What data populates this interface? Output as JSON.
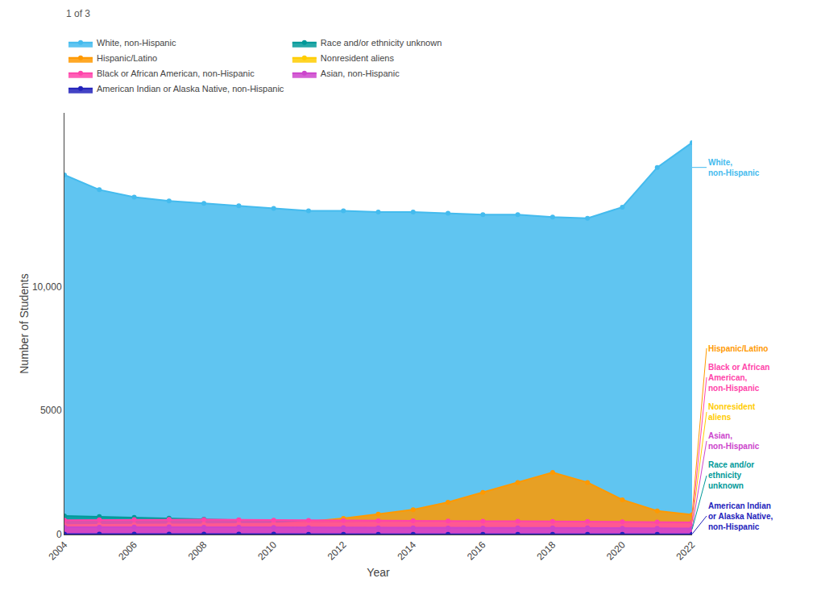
{
  "chart_data": {
    "type": "area",
    "x": [
      2004,
      2005,
      2006,
      2007,
      2008,
      2009,
      2010,
      2011,
      2012,
      2013,
      2014,
      2015,
      2016,
      2017,
      2018,
      2019,
      2020,
      2021,
      2022
    ],
    "series": [
      {
        "name": "White, non-Hispanic",
        "color": "#44bbee",
        "values": [
          14500,
          13900,
          13600,
          13450,
          13350,
          13250,
          13150,
          13050,
          13050,
          13000,
          13000,
          12950,
          12900,
          12900,
          12800,
          12750,
          13200,
          14800,
          15800
        ]
      },
      {
        "name": "Race and/or ethnicity unknown",
        "color": "#009999",
        "values": [
          750,
          720,
          690,
          660,
          620,
          580,
          540,
          500,
          460,
          430,
          400,
          370,
          340,
          310,
          280,
          260,
          240,
          220,
          200
        ]
      },
      {
        "name": "Hispanic/Latino",
        "color": "#ff9900",
        "values": [
          150,
          160,
          200,
          260,
          310,
          360,
          430,
          520,
          650,
          820,
          1000,
          1300,
          1700,
          2100,
          2500,
          2100,
          1400,
          950,
          800
        ]
      },
      {
        "name": "Nonresident aliens",
        "color": "#ffcc00",
        "values": [
          380,
          390,
          400,
          410,
          420,
          430,
          440,
          450,
          460,
          465,
          475,
          480,
          490,
          495,
          500,
          490,
          470,
          450,
          440
        ]
      },
      {
        "name": "Black or African American, non-Hispanic",
        "color": "#ff44aa",
        "values": [
          580,
          590,
          600,
          610,
          600,
          590,
          580,
          570,
          560,
          555,
          550,
          545,
          540,
          535,
          530,
          525,
          510,
          500,
          490
        ]
      },
      {
        "name": "Asian, non-Hispanic",
        "color": "#cc44cc",
        "values": [
          290,
          295,
          300,
          305,
          295,
          290,
          285,
          280,
          275,
          270,
          265,
          260,
          260,
          265,
          270,
          265,
          255,
          250,
          245
        ]
      },
      {
        "name": "American Indian or Alaska Native, non-Hispanic",
        "color": "#2222bb",
        "values": [
          20,
          18,
          17,
          16,
          15,
          14,
          13,
          12,
          11,
          10,
          10,
          9,
          9,
          8,
          8,
          8,
          7,
          7,
          7
        ]
      }
    ],
    "xlabel": "Year",
    "ylabel": "Number of Students",
    "xlim": [
      2004,
      2022
    ],
    "xticks": [
      2004,
      2006,
      2008,
      2010,
      2012,
      2014,
      2016,
      2018,
      2020,
      2022
    ],
    "ylim": [
      0,
      17000
    ],
    "yticks": [
      0,
      5000,
      {
        "value": 10000,
        "label": "10,000"
      }
    ],
    "grid": false,
    "legend": "top",
    "marker": "circle",
    "annotations": [
      {
        "text": "White,\nnon-Hispanic",
        "color": "#44bbee",
        "y": 14800
      },
      {
        "text": "Nonresident\naliens",
        "color": "#ffcc00",
        "y": 490
      },
      {
        "text": "Hispanic/Latino",
        "color": "#ff9900",
        "y": 830
      },
      {
        "text": "Black or African\nAmerican,\nnon-Hispanic",
        "color": "#ff44aa",
        "y": 540
      },
      {
        "text": "Asian,\nnon-Hispanic",
        "color": "#cc44cc",
        "y": 270
      },
      {
        "text": "Race and/or\nethnicity\nunknown",
        "color": "#009999",
        "y": 205
      },
      {
        "text": "American Indian\nor Alaska Native,\nnon-Hispanic",
        "color": "#2222bb",
        "y": 15
      },
      {
        "text": "1 of 3"
      }
    ]
  }
}
